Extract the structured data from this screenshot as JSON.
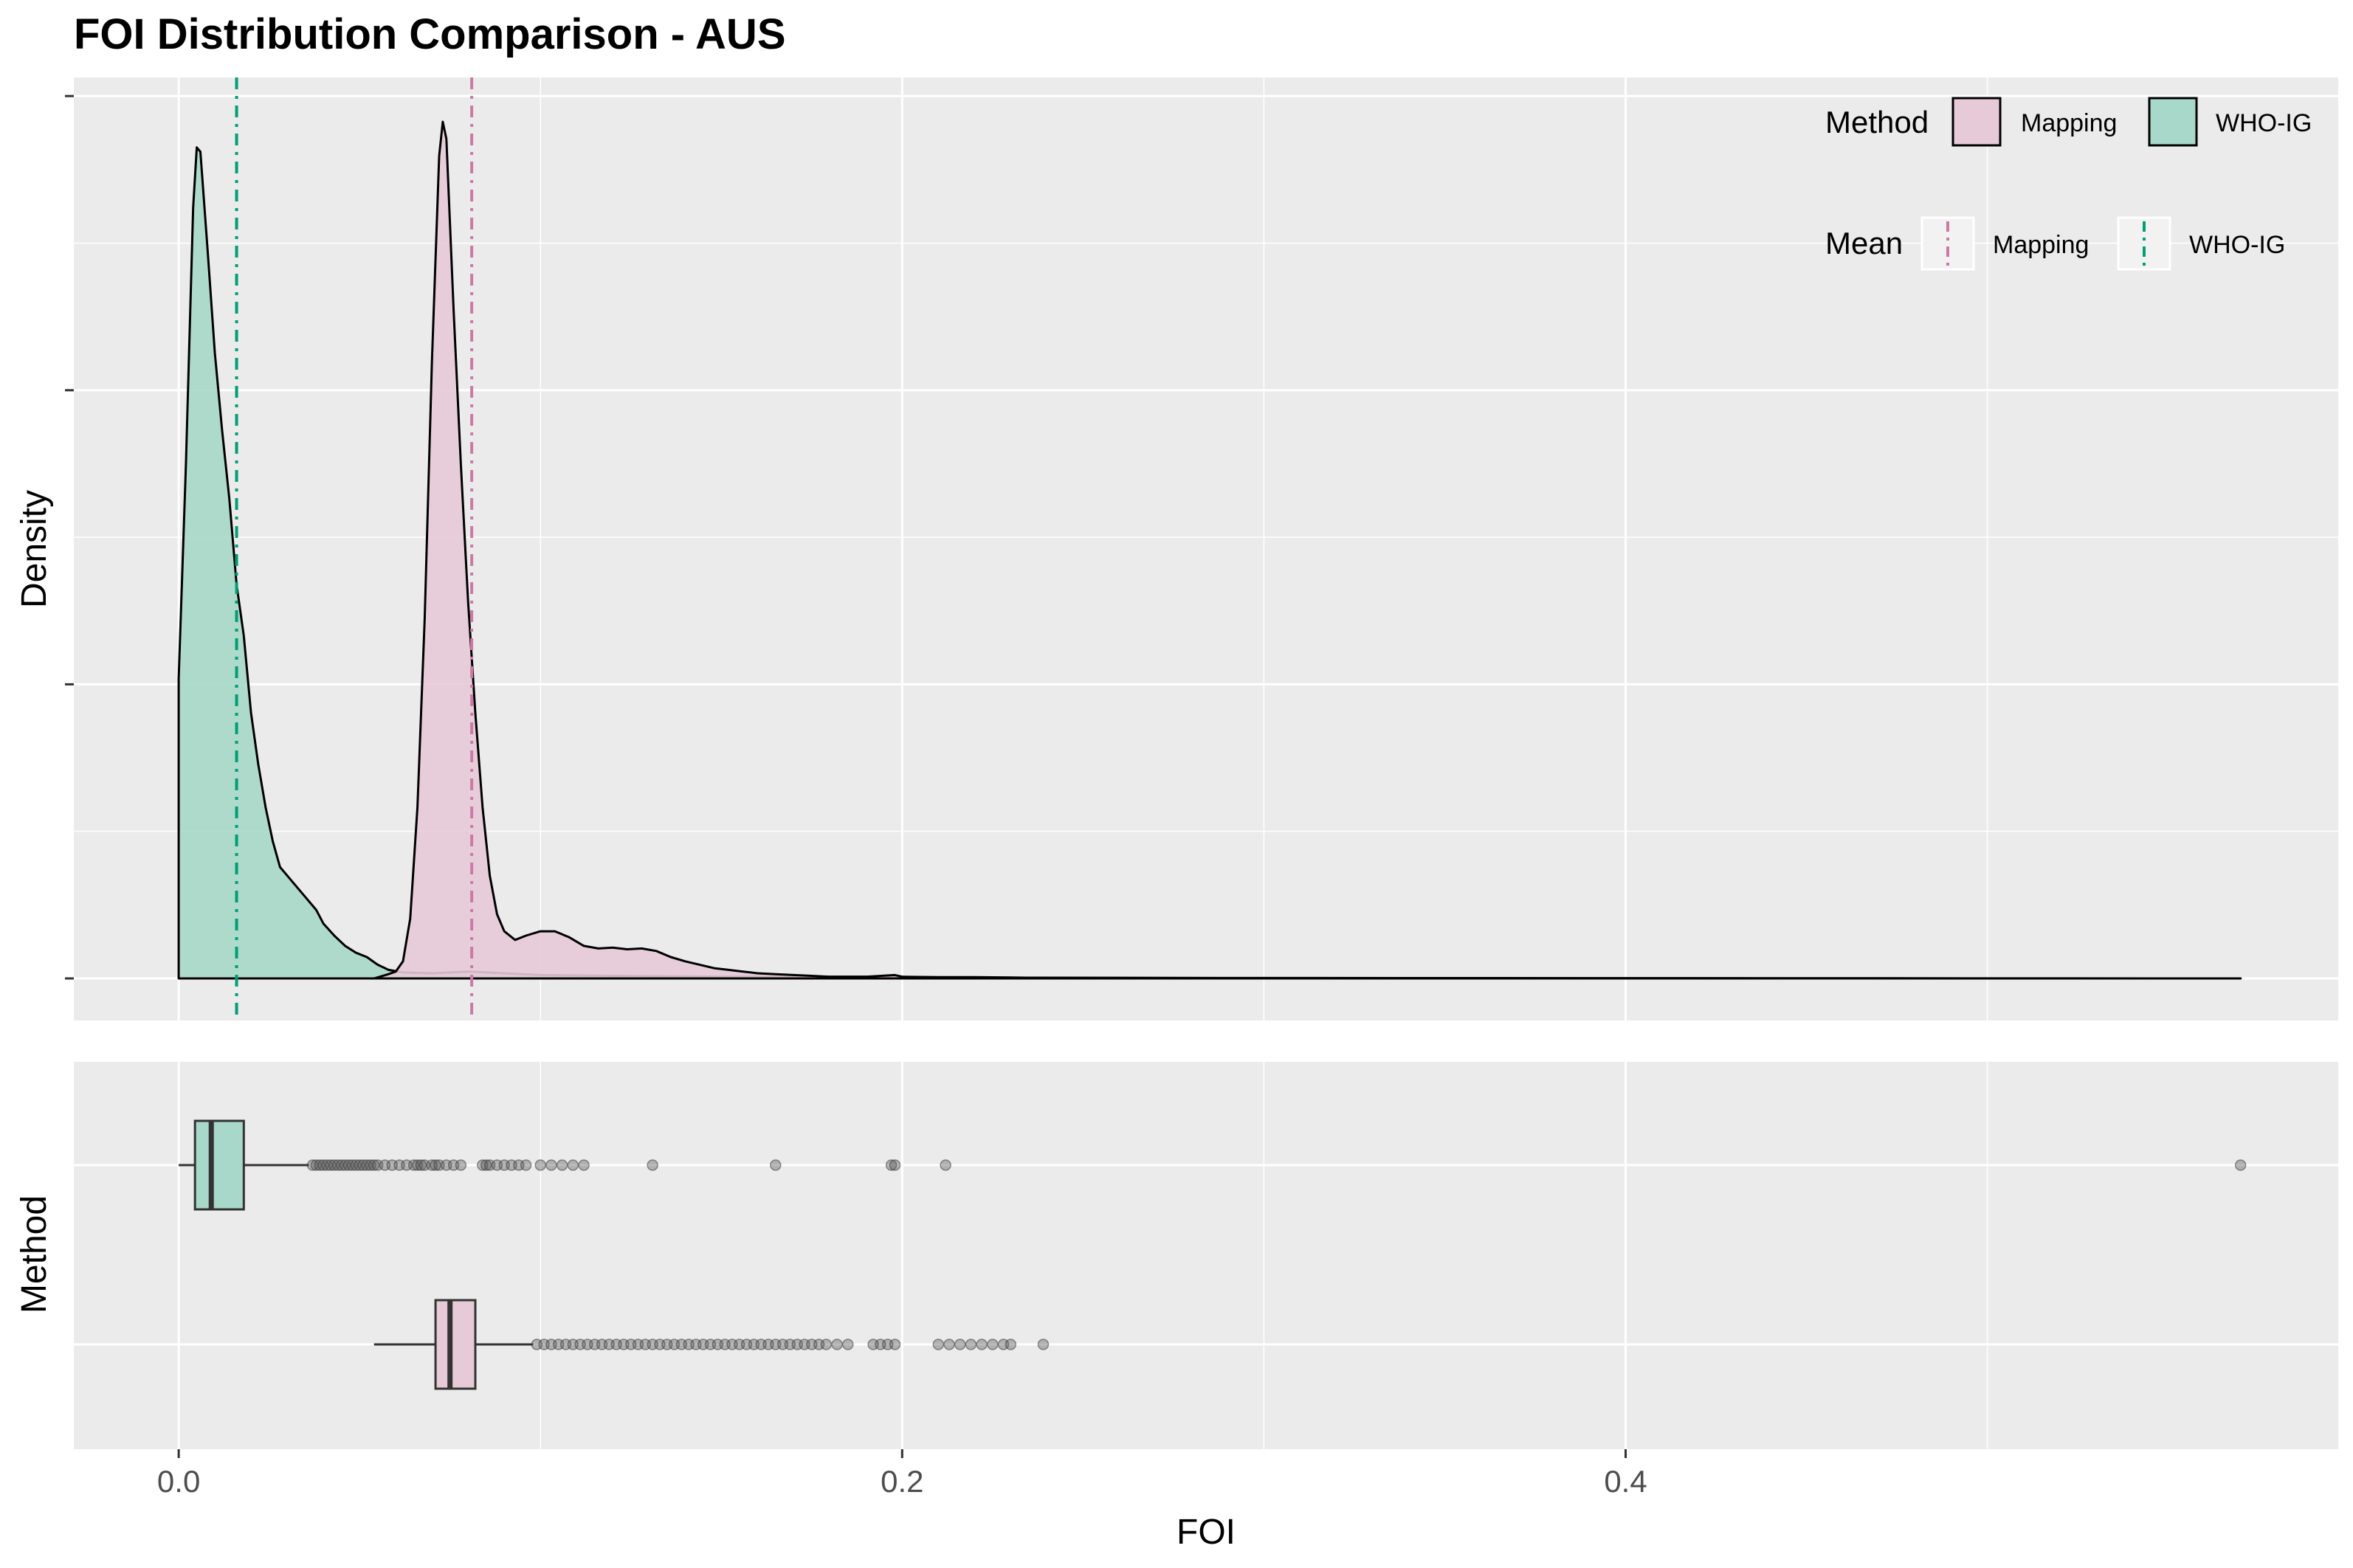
{
  "chart_data": [
    {
      "type": "area",
      "title": "FOI Distribution Comparison - AUS",
      "ylabel": "Density",
      "xlabel": "",
      "xlim": [
        -0.029,
        0.597
      ],
      "x_ticks": [
        0.0,
        0.2,
        0.4
      ],
      "y_tick_labels_shown": false,
      "grid": true,
      "legend_position": "top-right",
      "legends": [
        {
          "title": "Method",
          "kind": "fill",
          "entries": [
            {
              "label": "Mapping",
              "color": "#e7cad8"
            },
            {
              "label": "WHO-IG",
              "color": "#a7d8c9"
            }
          ]
        },
        {
          "title": "Mean",
          "kind": "line",
          "entries": [
            {
              "label": "Mapping",
              "color": "#cc79a7"
            },
            {
              "label": "WHO-IG",
              "color": "#009e73"
            }
          ]
        }
      ],
      "series": [
        {
          "name": "WHO-IG",
          "fill": "#a7d8c9",
          "points": [
            [
              0.0,
              0.0
            ],
            [
              0.0,
              0.35
            ],
            [
              0.002,
              0.6
            ],
            [
              0.004,
              0.9
            ],
            [
              0.005,
              0.97
            ],
            [
              0.006,
              0.965
            ],
            [
              0.008,
              0.85
            ],
            [
              0.01,
              0.73
            ],
            [
              0.012,
              0.64
            ],
            [
              0.014,
              0.56
            ],
            [
              0.016,
              0.46
            ],
            [
              0.018,
              0.4
            ],
            [
              0.02,
              0.31
            ],
            [
              0.022,
              0.25
            ],
            [
              0.024,
              0.2
            ],
            [
              0.026,
              0.16
            ],
            [
              0.028,
              0.13
            ],
            [
              0.03,
              0.12
            ],
            [
              0.032,
              0.11
            ],
            [
              0.035,
              0.095
            ],
            [
              0.038,
              0.08
            ],
            [
              0.04,
              0.064
            ],
            [
              0.043,
              0.05
            ],
            [
              0.046,
              0.038
            ],
            [
              0.049,
              0.03
            ],
            [
              0.052,
              0.025
            ],
            [
              0.055,
              0.016
            ],
            [
              0.058,
              0.01
            ],
            [
              0.062,
              0.007
            ],
            [
              0.07,
              0.006
            ],
            [
              0.08,
              0.008
            ],
            [
              0.09,
              0.006
            ],
            [
              0.1,
              0.004
            ],
            [
              0.12,
              0.003
            ],
            [
              0.15,
              0.002
            ],
            [
              0.2,
              0.002
            ],
            [
              0.21,
              0.001
            ],
            [
              0.3,
              0.0005
            ],
            [
              0.57,
              0.0
            ]
          ],
          "mean": 0.016
        },
        {
          "name": "Mapping",
          "fill": "#e7cad8",
          "points": [
            [
              0.054,
              0.0
            ],
            [
              0.058,
              0.005
            ],
            [
              0.06,
              0.008
            ],
            [
              0.062,
              0.02
            ],
            [
              0.064,
              0.07
            ],
            [
              0.066,
              0.2
            ],
            [
              0.068,
              0.42
            ],
            [
              0.07,
              0.72
            ],
            [
              0.072,
              0.96
            ],
            [
              0.073,
              1.0
            ],
            [
              0.074,
              0.98
            ],
            [
              0.076,
              0.78
            ],
            [
              0.078,
              0.6
            ],
            [
              0.08,
              0.44
            ],
            [
              0.082,
              0.31
            ],
            [
              0.084,
              0.2
            ],
            [
              0.086,
              0.12
            ],
            [
              0.088,
              0.075
            ],
            [
              0.09,
              0.055
            ],
            [
              0.093,
              0.045
            ],
            [
              0.096,
              0.05
            ],
            [
              0.1,
              0.055
            ],
            [
              0.104,
              0.055
            ],
            [
              0.108,
              0.048
            ],
            [
              0.112,
              0.038
            ],
            [
              0.116,
              0.035
            ],
            [
              0.12,
              0.036
            ],
            [
              0.124,
              0.034
            ],
            [
              0.128,
              0.035
            ],
            [
              0.132,
              0.032
            ],
            [
              0.136,
              0.025
            ],
            [
              0.14,
              0.02
            ],
            [
              0.144,
              0.016
            ],
            [
              0.148,
              0.012
            ],
            [
              0.152,
              0.01
            ],
            [
              0.156,
              0.008
            ],
            [
              0.16,
              0.006
            ],
            [
              0.165,
              0.005
            ],
            [
              0.17,
              0.004
            ],
            [
              0.175,
              0.003
            ],
            [
              0.18,
              0.002
            ],
            [
              0.19,
              0.002
            ],
            [
              0.198,
              0.004
            ],
            [
              0.2,
              0.002
            ],
            [
              0.21,
              0.0015
            ],
            [
              0.22,
              0.0015
            ],
            [
              0.23,
              0.001
            ],
            [
              0.24,
              0.0005
            ],
            [
              0.3,
              0.0002
            ],
            [
              0.57,
              0.0
            ]
          ],
          "mean": 0.081
        }
      ]
    },
    {
      "type": "box",
      "ylabel": "Method",
      "xlabel": "FOI",
      "xlim": [
        -0.029,
        0.597
      ],
      "x_ticks": [
        0.0,
        0.2,
        0.4
      ],
      "grid": true,
      "series": [
        {
          "name": "WHO-IG",
          "fill": "#a7d8c9",
          "whisker_low": 0.0,
          "q1": 0.0045,
          "median": 0.009,
          "q3": 0.018,
          "whisker_high": 0.036,
          "outliers": [
            0.037,
            0.038,
            0.039,
            0.04,
            0.041,
            0.042,
            0.043,
            0.044,
            0.045,
            0.046,
            0.047,
            0.048,
            0.049,
            0.05,
            0.051,
            0.052,
            0.053,
            0.054,
            0.055,
            0.057,
            0.059,
            0.061,
            0.063,
            0.065,
            0.066,
            0.067,
            0.068,
            0.07,
            0.071,
            0.072,
            0.074,
            0.076,
            0.078,
            0.084,
            0.085,
            0.086,
            0.088,
            0.09,
            0.092,
            0.094,
            0.096,
            0.1,
            0.103,
            0.106,
            0.109,
            0.112,
            0.131,
            0.165,
            0.197,
            0.198,
            0.212,
            0.57
          ]
        },
        {
          "name": "Mapping",
          "fill": "#e7cad8",
          "whisker_low": 0.054,
          "q1": 0.071,
          "median": 0.075,
          "q3": 0.082,
          "whisker_high": 0.098,
          "outliers": [
            0.099,
            0.101,
            0.103,
            0.105,
            0.107,
            0.109,
            0.111,
            0.113,
            0.115,
            0.117,
            0.119,
            0.121,
            0.123,
            0.125,
            0.127,
            0.129,
            0.131,
            0.133,
            0.135,
            0.137,
            0.139,
            0.141,
            0.143,
            0.145,
            0.147,
            0.149,
            0.151,
            0.153,
            0.155,
            0.157,
            0.159,
            0.161,
            0.163,
            0.165,
            0.167,
            0.169,
            0.171,
            0.173,
            0.175,
            0.177,
            0.179,
            0.182,
            0.185,
            0.192,
            0.194,
            0.196,
            0.198,
            0.21,
            0.213,
            0.216,
            0.219,
            0.222,
            0.225,
            0.228,
            0.23,
            0.239
          ]
        }
      ]
    }
  ]
}
